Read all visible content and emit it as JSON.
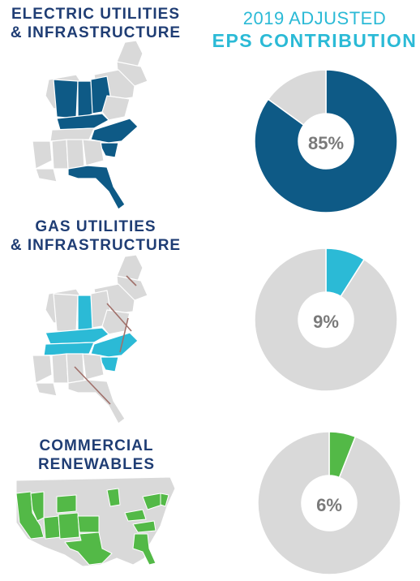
{
  "header": {
    "line1": "2019 ADJUSTED",
    "line2": "EPS CONTRIBUTION"
  },
  "segments": [
    {
      "line1": "ELECTRIC UTILITIES",
      "line2": "& INFRASTRUCTURE",
      "map_icon": "eastern-us-map-icon"
    },
    {
      "line1": "GAS UTILITIES",
      "line2": "& INFRASTRUCTURE",
      "map_icon": "eastern-us-map-icon"
    },
    {
      "line1": "COMMERCIAL",
      "line2": "RENEWABLES",
      "map_icon": "us-map-icon"
    }
  ],
  "chart_data": [
    {
      "type": "pie",
      "label": "85%",
      "values": [
        85,
        15
      ],
      "colors": [
        "#0e5a86",
        "#d9d9d9"
      ]
    },
    {
      "type": "pie",
      "label": "9%",
      "values": [
        9,
        91
      ],
      "colors": [
        "#2bbad6",
        "#d9d9d9"
      ]
    },
    {
      "type": "pie",
      "label": "6%",
      "values": [
        6,
        94
      ],
      "colors": [
        "#53b947",
        "#d9d9d9"
      ]
    }
  ],
  "colors": {
    "title": "#1f3d74",
    "accent": "#2bbad6",
    "electric": "#0e5a86",
    "gas": "#2bbad6",
    "renewables": "#53b947",
    "inactive": "#d9d9d9",
    "label": "#7a7a7a",
    "pipeline": "#a0706a"
  }
}
